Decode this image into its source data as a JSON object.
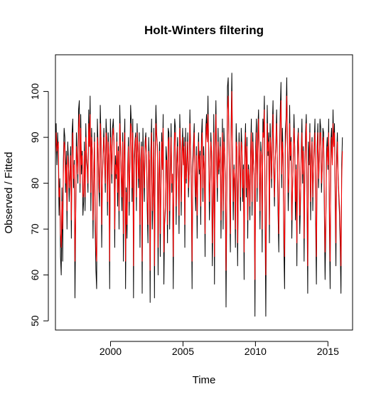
{
  "chart_data": {
    "type": "line",
    "title": "Holt-Winters filtering",
    "xlabel": "Time",
    "ylabel": "Observed / Fitted",
    "xlim": [
      1996.2,
      2016.7
    ],
    "ylim": [
      48,
      108
    ],
    "x_ticks": [
      2000,
      2005,
      2010,
      2015
    ],
    "y_ticks": [
      50,
      60,
      70,
      80,
      90,
      100
    ],
    "grid": false,
    "legend": "none",
    "x_start": 1996.2,
    "x_end": 2016.0,
    "series": [
      {
        "role": "observed",
        "color": "#000000",
        "values": [
          88,
          93,
          84,
          91,
          86,
          73,
          81,
          64,
          60,
          79,
          63,
          85,
          92,
          90,
          78,
          87,
          70,
          89,
          85,
          76,
          82,
          88,
          68,
          91,
          94,
          79,
          85,
          55,
          72,
          91,
          86,
          80,
          96,
          98,
          78,
          95,
          82,
          87,
          73,
          76,
          89,
          74,
          93,
          85,
          83,
          78,
          96,
          88,
          99,
          74,
          92,
          86,
          68,
          81,
          91,
          70,
          61,
          57,
          94,
          88,
          79,
          75,
          97,
          90,
          66,
          82,
          87,
          92,
          85,
          78,
          94,
          90,
          73,
          91,
          85,
          57,
          94,
          88,
          80,
          92,
          94,
          89,
          66,
          86,
          81,
          91,
          75,
          88,
          70,
          97,
          89,
          81,
          74,
          91,
          63,
          88,
          94,
          57,
          79,
          68,
          84,
          90,
          73,
          85,
          97,
          93,
          76,
          94,
          55,
          86,
          89,
          91,
          74,
          93,
          87,
          79,
          91,
          66,
          85,
          89,
          56,
          92,
          84,
          76,
          89,
          91,
          86,
          74,
          67,
          90,
          84,
          54,
          87,
          94,
          70,
          78,
          92,
          55,
          87,
          97,
          91,
          88,
          60,
          82,
          89,
          64,
          80,
          91,
          83,
          95,
          58,
          71,
          74,
          88,
          85,
          67,
          92,
          91,
          70,
          84,
          93,
          78,
          82,
          57,
          86,
          94,
          92,
          71,
          85,
          90,
          81,
          69,
          95,
          88,
          73,
          87,
          92,
          84,
          90,
          66,
          92,
          80,
          85,
          91,
          77,
          82,
          96,
          87,
          79,
          57,
          85,
          89,
          93,
          80,
          74,
          88,
          68,
          84,
          91,
          82,
          87,
          71,
          90,
          94,
          76,
          88,
          83,
          64,
          92,
          95,
          89,
          99,
          87,
          72,
          81,
          91,
          86,
          62,
          74,
          95,
          58,
          89,
          98,
          84,
          76,
          92,
          82,
          85,
          90,
          68,
          81,
          94,
          70,
          92,
          87,
          79,
          53,
          75,
          101,
          103,
          89,
          77,
          65,
          92,
          104,
          86,
          72,
          84,
          79,
          66,
          93,
          87,
          62,
          80,
          91,
          85,
          74,
          92,
          88,
          76,
          84,
          59,
          88,
          93,
          77,
          90,
          68,
          84,
          81,
          72,
          87,
          94,
          73,
          91,
          85,
          81,
          51,
          88,
          94,
          76,
          92,
          96,
          83,
          70,
          89,
          86,
          65,
          94,
          91,
          99,
          73,
          51,
          78,
          97,
          86,
          91,
          67,
          93,
          87,
          79,
          92,
          98,
          83,
          75,
          85,
          89,
          96,
          84,
          73,
          65,
          88,
          96,
          102,
          79,
          92,
          85,
          66,
          57,
          91,
          94,
          103,
          88,
          74,
          81,
          97,
          85,
          90,
          68,
          79,
          86,
          95,
          88,
          72,
          84,
          62,
          89,
          92,
          83,
          69,
          76,
          87,
          94,
          80,
          88,
          63,
          83,
          91,
          95,
          77,
          56,
          89,
          84,
          93,
          72,
          86,
          90,
          74,
          84,
          89,
          94,
          71,
          58,
          88,
          93,
          79,
          85,
          94,
          92,
          78,
          83,
          92,
          91,
          74,
          59,
          70,
          87,
          90,
          83,
          94,
          71,
          57,
          89,
          92,
          84,
          96,
          88,
          93,
          76,
          62,
          86,
          91,
          81,
          77,
          73,
          66,
          56,
          84,
          90
        ]
      },
      {
        "role": "fitted",
        "color": "#ff0000",
        "values": [
          86,
          91,
          87,
          88,
          89,
          77,
          79,
          69,
          66,
          76,
          70,
          82,
          89,
          88,
          80,
          84,
          74,
          86,
          84,
          79,
          81,
          86,
          72,
          87,
          91,
          81,
          84,
          63,
          73,
          88,
          85,
          82,
          92,
          95,
          80,
          92,
          84,
          86,
          77,
          78,
          87,
          77,
          90,
          86,
          84,
          80,
          93,
          88,
          95,
          78,
          90,
          87,
          72,
          80,
          89,
          74,
          66,
          63,
          90,
          88,
          81,
          78,
          93,
          90,
          71,
          81,
          86,
          90,
          86,
          80,
          91,
          90,
          76,
          89,
          86,
          63,
          90,
          88,
          82,
          90,
          92,
          89,
          70,
          84,
          82,
          89,
          78,
          87,
          74,
          93,
          89,
          82,
          77,
          89,
          69,
          86,
          91,
          63,
          78,
          71,
          82,
          88,
          76,
          84,
          93,
          92,
          79,
          91,
          62,
          83,
          88,
          90,
          77,
          91,
          87,
          81,
          89,
          71,
          83,
          88,
          63,
          88,
          85,
          79,
          87,
          90,
          86,
          77,
          71,
          87,
          85,
          61,
          84,
          91,
          74,
          78,
          89,
          62,
          84,
          93,
          90,
          88,
          66,
          80,
          87,
          69,
          79,
          89,
          83,
          92,
          65,
          72,
          75,
          85,
          85,
          71,
          89,
          90,
          74,
          82,
          90,
          80,
          82,
          64,
          83,
          91,
          91,
          75,
          83,
          88,
          82,
          73,
          92,
          88,
          76,
          85,
          90,
          84,
          88,
          71,
          89,
          81,
          84,
          89,
          79,
          82,
          93,
          87,
          81,
          63,
          82,
          87,
          91,
          82,
          77,
          86,
          73,
          82,
          89,
          83,
          86,
          75,
          88,
          91,
          79,
          86,
          84,
          69,
          89,
          93,
          89,
          95,
          88,
          76,
          81,
          89,
          87,
          67,
          76,
          91,
          64,
          86,
          95,
          85,
          79,
          89,
          83,
          85,
          88,
          72,
          81,
          91,
          74,
          89,
          87,
          81,
          61,
          76,
          96,
          99,
          90,
          80,
          69,
          89,
          100,
          88,
          76,
          83,
          81,
          70,
          89,
          88,
          67,
          79,
          89,
          85,
          77,
          89,
          88,
          79,
          83,
          65,
          85,
          91,
          79,
          88,
          72,
          83,
          81,
          75,
          85,
          91,
          76,
          89,
          85,
          82,
          59,
          84,
          91,
          79,
          89,
          94,
          85,
          74,
          87,
          86,
          70,
          91,
          90,
          96,
          77,
          60,
          77,
          93,
          87,
          89,
          71,
          90,
          88,
          81,
          89,
          95,
          85,
          77,
          85,
          88,
          93,
          85,
          76,
          69,
          85,
          93,
          98,
          82,
          89,
          86,
          70,
          64,
          87,
          92,
          99,
          89,
          78,
          81,
          93,
          86,
          89,
          72,
          79,
          85,
          92,
          88,
          76,
          83,
          67,
          86,
          91,
          84,
          73,
          77,
          85,
          91,
          82,
          87,
          68,
          82,
          89,
          93,
          80,
          62,
          84,
          85,
          91,
          76,
          84,
          89,
          77,
          83,
          88,
          91,
          75,
          64,
          85,
          91,
          81,
          85,
          91,
          91,
          80,
          83,
          89,
          90,
          78,
          65,
          71,
          84,
          88,
          84,
          91,
          75,
          63,
          85,
          90,
          84,
          93,
          88,
          91,
          79,
          67,
          83,
          89,
          82,
          78,
          75,
          70,
          62,
          81,
          87
        ]
      }
    ]
  }
}
